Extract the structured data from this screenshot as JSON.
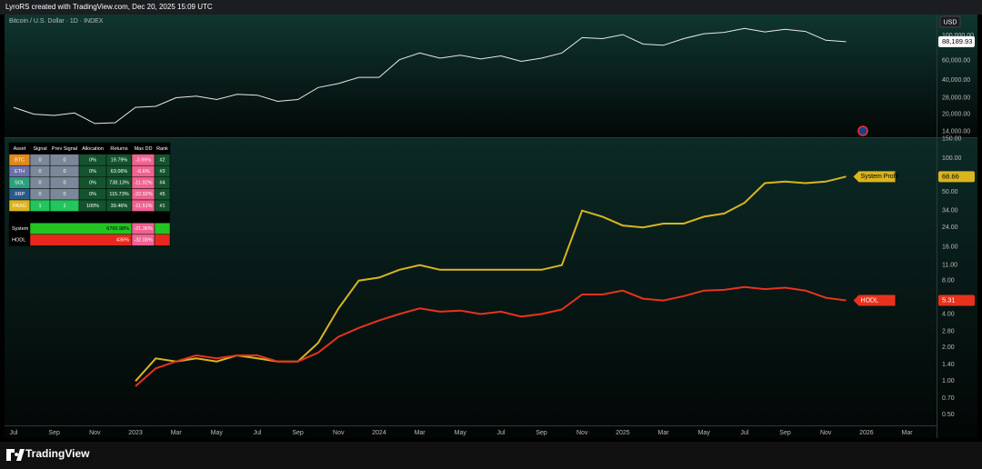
{
  "header": {
    "credit": "LyroRS created with TradingView.com, Dec 20, 2025 15:09 UTC"
  },
  "footer": {
    "brand": "TradingView"
  },
  "chart_data": {
    "type": "line",
    "grid": false,
    "categories": [
      "Jul",
      null,
      "Sep",
      null,
      "Nov",
      null,
      "2023",
      null,
      "Mar",
      null,
      "May",
      null,
      "Jul",
      null,
      "Sep",
      null,
      "Nov",
      null,
      "2024",
      null,
      "Mar",
      null,
      "May",
      null,
      "Jul",
      null,
      "Sep",
      null,
      "Nov",
      null,
      "2025",
      null,
      "Mar",
      null,
      "May",
      null,
      "Jul",
      null,
      "Sep",
      null,
      "Nov",
      null,
      "2026",
      null,
      "Mar"
    ],
    "panes": [
      {
        "title": "Bitcoin / U.S. Dollar · 1D · INDEX",
        "currency": "USD",
        "log_scale": true,
        "ylim": [
          12700,
          154000
        ],
        "yticks": [
          {
            "value": 100000,
            "label": "100,000.00"
          },
          {
            "value": 60000,
            "label": "60,000.00"
          },
          {
            "value": 40000,
            "label": "40,000.00"
          },
          {
            "value": 28000,
            "label": "28,000.00"
          },
          {
            "value": 20000,
            "label": "20,000.00"
          },
          {
            "value": 14000,
            "label": "14,000.00"
          }
        ],
        "series": [
          {
            "color": "#e8e8e8",
            "values": [
              23000,
              20000,
              19500,
              20500,
              16500,
              16800,
              23000,
              23500,
              28000,
              29000,
              27000,
              30000,
              29500,
              26000,
              27000,
              34500,
              37500,
              42500,
              42500,
              61000,
              70000,
              63000,
              67000,
              62000,
              66000,
              59000,
              63000,
              70000,
              96000,
              94000,
              102000,
              84000,
              82000,
              94000,
              104000,
              107000,
              116000,
              108000,
              114000,
              109000,
              91000,
              88189.93,
              null,
              null,
              null
            ],
            "value_labels": [
              null,
              null,
              null,
              null,
              null,
              null,
              null,
              null,
              null,
              null,
              null,
              null,
              null,
              null,
              null,
              null,
              null,
              null,
              null,
              null,
              null,
              null,
              null,
              null,
              null,
              null,
              null,
              null,
              null,
              null,
              null,
              null,
              null,
              null,
              null,
              null,
              null,
              null,
              null,
              null,
              null,
              "88,189.93",
              null,
              null,
              null
            ]
          }
        ]
      },
      {
        "log_scale": true,
        "ylim": [
          0.4,
          158
        ],
        "yticks": [
          {
            "value": 150,
            "label": "150.00"
          },
          {
            "value": 100,
            "label": "100.00"
          },
          {
            "value": 50,
            "label": "50.00"
          },
          {
            "value": 34,
            "label": "34.00"
          },
          {
            "value": 24,
            "label": "24.00"
          },
          {
            "value": 16,
            "label": "16.00"
          },
          {
            "value": 11,
            "label": "11.00"
          },
          {
            "value": 8,
            "label": "8.00"
          },
          {
            "value": 4,
            "label": "4.00"
          },
          {
            "value": 2.8,
            "label": "2.80"
          },
          {
            "value": 2,
            "label": "2.00"
          },
          {
            "value": 1.4,
            "label": "1.40"
          },
          {
            "value": 1,
            "label": "1.00"
          },
          {
            "value": 0.7,
            "label": "0.70"
          },
          {
            "value": 0.5,
            "label": "0.50"
          }
        ],
        "series": [
          {
            "name": "System Profit",
            "color": "#d9b520",
            "values": [
              null,
              null,
              null,
              null,
              null,
              null,
              1.0,
              1.6,
              1.5,
              1.6,
              1.5,
              1.7,
              1.6,
              1.5,
              1.5,
              2.2,
              4.5,
              8,
              8.5,
              10,
              11,
              10,
              10,
              10,
              10,
              10,
              10,
              11,
              34,
              30,
              25,
              24,
              26,
              26,
              30,
              32,
              40,
              60,
              62,
              60,
              62,
              68.66,
              null,
              null,
              null
            ]
          },
          {
            "name": "HODL",
            "color": "#e8321e",
            "values": [
              null,
              null,
              null,
              null,
              null,
              null,
              0.9,
              1.3,
              1.5,
              1.7,
              1.6,
              1.7,
              1.7,
              1.5,
              1.5,
              1.8,
              2.5,
              3.0,
              3.5,
              4.0,
              4.5,
              4.2,
              4.3,
              4.0,
              4.2,
              3.8,
              4.0,
              4.4,
              6.0,
              6.0,
              6.5,
              5.5,
              5.3,
              5.8,
              6.5,
              6.6,
              7.0,
              6.7,
              6.9,
              6.5,
              5.6,
              5.31,
              null,
              null,
              null
            ]
          }
        ]
      }
    ]
  },
  "table": {
    "header": [
      "Asset",
      "Signal",
      "Prev Signal",
      "Allocation",
      "Returns",
      "Max DD",
      "Rank"
    ],
    "rows": [
      [
        "BTC",
        0,
        0,
        "0%",
        "19.79%",
        "-3.99%",
        "#2"
      ],
      [
        "ETH",
        0,
        0,
        "0%",
        "63.06%",
        "-6.6%",
        "#3"
      ],
      [
        "SOL",
        0,
        0,
        "0%",
        "738.13%",
        "-11.92%",
        "#4"
      ],
      [
        "XRP",
        0,
        0,
        "0%",
        "115.73%",
        "-22.92%",
        "#5"
      ],
      [
        "PAXG",
        1,
        1,
        "100%",
        "39.46%",
        "-11.51%",
        "#1"
      ]
    ],
    "totals": [
      [
        "System",
        "6760.98%",
        "-21.36%"
      ],
      [
        "HODL",
        "436%",
        "-32.08%"
      ]
    ]
  }
}
